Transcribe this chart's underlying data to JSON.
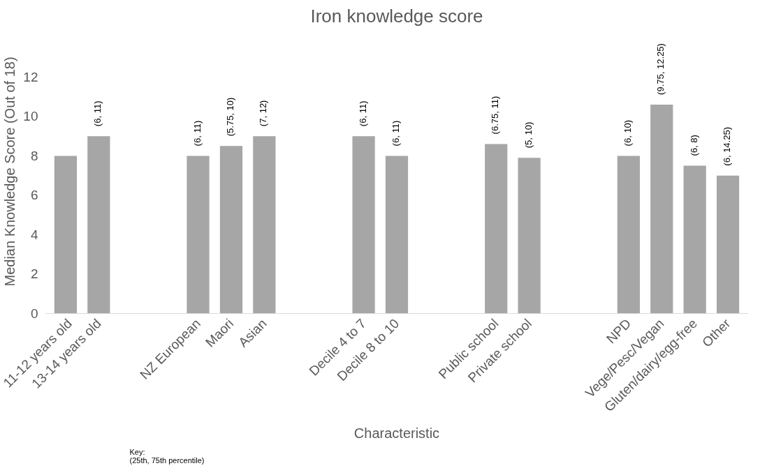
{
  "chart_data": {
    "type": "bar",
    "title": "Iron knowledge score",
    "xlabel": "Characteristic",
    "ylabel": "Median Knowledge Score (Out of 18)",
    "categories": [
      "11-12 years old",
      "13-14 years old",
      null,
      null,
      "NZ European",
      "Maori",
      "Asian",
      null,
      null,
      "Decile 4 to 7",
      "Decile 8 to 10",
      null,
      null,
      "Public school",
      "Private school",
      null,
      null,
      "NPD",
      "Vege/Pesc/Vegan",
      "Gluten/dairy/egg-free",
      "Other"
    ],
    "values": [
      8,
      9,
      null,
      null,
      8,
      8.5,
      9,
      null,
      null,
      9,
      8,
      null,
      null,
      8.6,
      7.9,
      null,
      null,
      8,
      10.6,
      7.5,
      7.0
    ],
    "value_labels": [
      null,
      "(6, 11)",
      null,
      null,
      "(6, 11)",
      "(5.75, 10)",
      "(7, 12)",
      null,
      null,
      "(6, 11)",
      "(6, 11)",
      null,
      null,
      "(6.75, 11)",
      "(5, 10)",
      null,
      null,
      "(6, 10)",
      "(9.75, 12.25)",
      "(6, 8)",
      "(6, 14.25)"
    ],
    "color": "#a6a6a6",
    "ylim": [
      0,
      12
    ],
    "yticks": [
      0,
      2,
      4,
      6,
      8,
      10,
      12
    ],
    "grid": false,
    "annotations": [
      "Key:\n(25th, 75th percentile)"
    ]
  }
}
